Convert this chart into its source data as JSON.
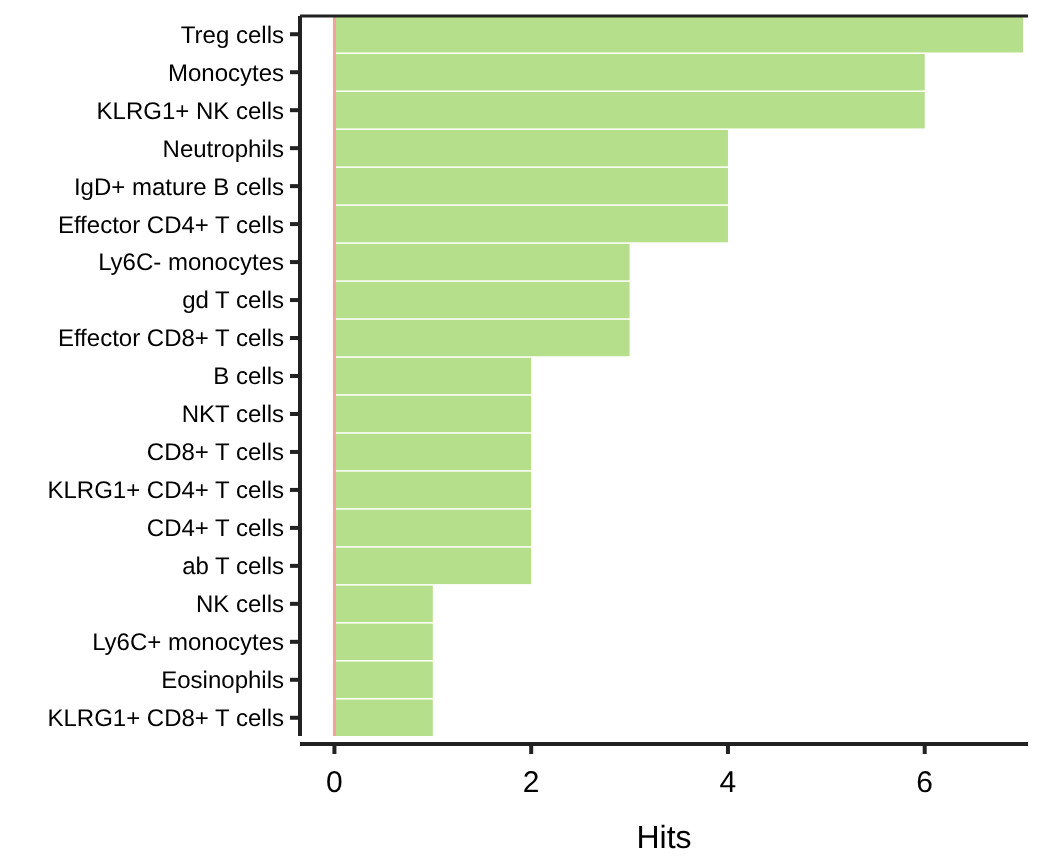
{
  "chart_data": {
    "type": "bar",
    "orientation": "horizontal",
    "xlabel": "Hits",
    "categories": [
      "Treg cells",
      "Monocytes",
      "KLRG1+ NK cells",
      "Neutrophils",
      "IgD+ mature B cells",
      "Effector CD4+ T cells",
      "Ly6C- monocytes",
      "gd T cells",
      "Effector CD8+ T cells",
      "B cells",
      "NKT cells",
      "CD8+ T cells",
      "KLRG1+ CD4+ T cells",
      "CD4+ T cells",
      "ab T cells",
      "NK cells",
      "Ly6C+ monocytes",
      "Eosinophils",
      "KLRG1+ CD8+ T cells"
    ],
    "values": [
      7,
      6,
      6,
      4,
      4,
      4,
      3,
      3,
      3,
      2,
      2,
      2,
      2,
      2,
      2,
      1,
      1,
      1,
      1
    ],
    "color": "#b5df8a",
    "xlim": [
      -0.35,
      7.05
    ],
    "xticks": [
      0,
      2,
      4,
      6
    ],
    "ref_lines": [
      {
        "axis": "x",
        "value": 0,
        "color": "#f4a0a0"
      }
    ],
    "grid": false
  }
}
